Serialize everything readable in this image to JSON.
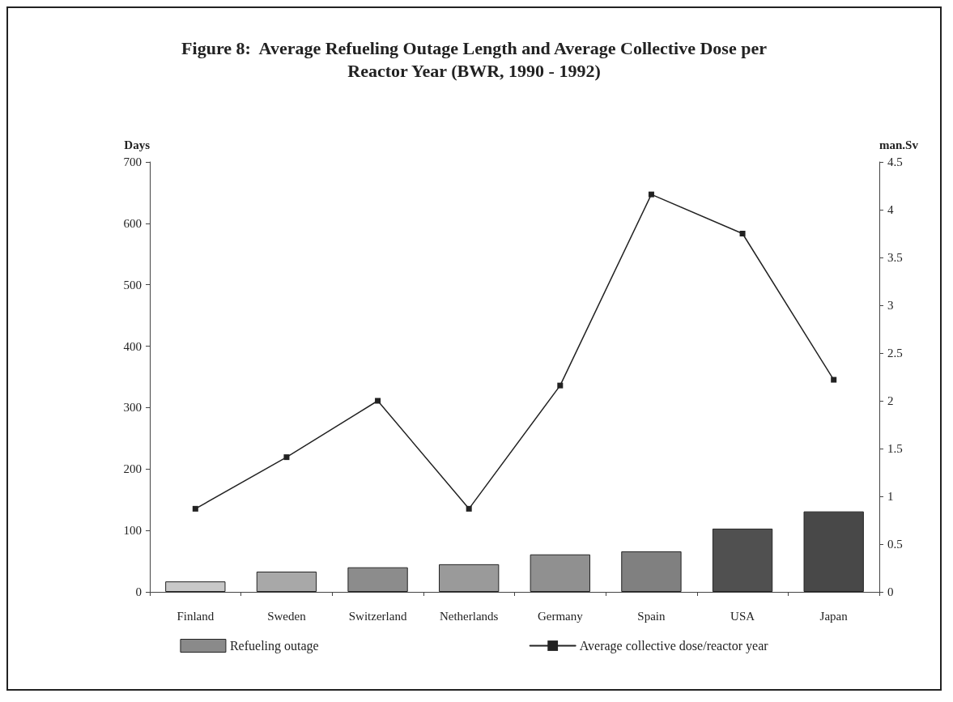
{
  "chart_data": {
    "type": "bar",
    "title": "Figure 8:  Average Refueling Outage Length and Average Collective Dose per\nReactor Year (BWR, 1990 - 1992)",
    "categories": [
      "Finland",
      "Sweden",
      "Switzerland",
      "Netherlands",
      "Germany",
      "Spain",
      "USA",
      "Japan"
    ],
    "series": [
      {
        "name": "Refueling outage",
        "color": "#8a8a8a",
        "colors": [
          "#c8c8c8",
          "#a8a8a8",
          "#8c8c8c",
          "#9a9a9a",
          "#909090",
          "#808080",
          "#505050",
          "#484848"
        ],
        "values": [
          17,
          33,
          40,
          45,
          61,
          66,
          103,
          131
        ]
      },
      {
        "name": "Average collective dose/reactor year",
        "type": "line",
        "axis": "y2",
        "color": "#222222",
        "marker": "square",
        "values": [
          0.87,
          1.41,
          2.0,
          0.87,
          2.16,
          4.16,
          3.75,
          2.22
        ]
      }
    ],
    "ylabel": "Days",
    "y2label": "man.Sv",
    "ylim": [
      0,
      700
    ],
    "yticks": [
      0,
      100,
      200,
      300,
      400,
      500,
      600,
      700
    ],
    "y2lim": [
      0,
      4.5
    ],
    "y2ticks": [
      0,
      0.5,
      1,
      1.5,
      2,
      2.5,
      3,
      3.5,
      4,
      4.5
    ],
    "grid": false,
    "legend": "bottom",
    "line_style": "solid"
  }
}
